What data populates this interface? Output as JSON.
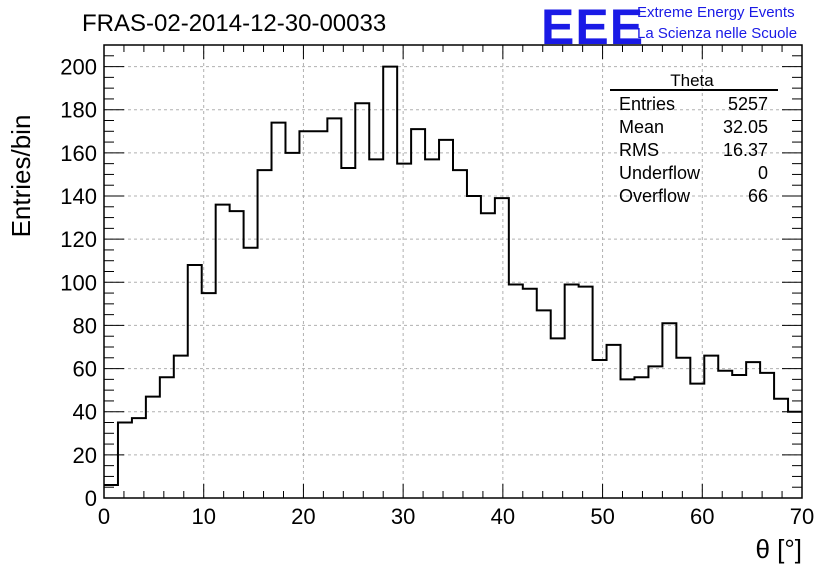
{
  "header": {
    "title": "FRAS-02-2014-12-30-00033",
    "logo": "EEE",
    "brand_line1": "Extreme Energy Events",
    "brand_line2": "La Scienza nelle Scuole"
  },
  "colors": {
    "brand": "#1a1ae6",
    "line": "#000000",
    "grid": "#b0b0b0"
  },
  "chart_data": {
    "type": "histogram",
    "xlabel": "θ [°]",
    "ylabel": "Entries/bin",
    "xlim": [
      0,
      70
    ],
    "ylim": [
      0,
      210
    ],
    "grid": true,
    "x_ticks": [
      0,
      10,
      20,
      30,
      40,
      50,
      60,
      70
    ],
    "y_ticks": [
      0,
      20,
      40,
      60,
      80,
      100,
      120,
      140,
      160,
      180,
      200
    ],
    "bin_width": 1.4,
    "bin_edges_start": 0,
    "values": [
      6,
      35,
      37,
      47,
      56,
      66,
      108,
      95,
      136,
      133,
      116,
      152,
      174,
      160,
      170,
      170,
      176,
      153,
      183,
      157,
      200,
      155,
      171,
      157,
      166,
      152,
      140,
      132,
      139,
      99,
      97,
      87,
      74,
      99,
      98,
      64,
      71,
      55,
      56,
      61,
      81,
      65,
      53,
      66,
      59,
      57,
      63,
      58,
      46,
      40
    ],
    "stats_box": {
      "title": "Theta",
      "rows": [
        {
          "label": "Entries",
          "value": "5257"
        },
        {
          "label": "Mean",
          "value": "32.05"
        },
        {
          "label": "RMS",
          "value": "16.37"
        },
        {
          "label": "Underflow",
          "value": "0"
        },
        {
          "label": "Overflow",
          "value": "66"
        }
      ]
    }
  }
}
